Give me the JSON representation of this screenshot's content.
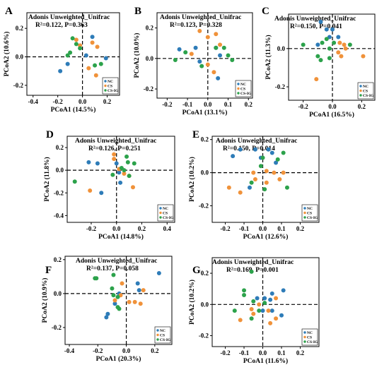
{
  "colors": {
    "NC": "#2e7cb8",
    "CS": "#f0923a",
    "CS-IG": "#2ca24b"
  },
  "chart_data": [
    {
      "type": "scatter",
      "panel": "A",
      "title": "Adonis Unweighted_Unifrac",
      "stat": "R²=0.122, P=0.363",
      "xlabel": "PCoA1 (14.5%)",
      "ylabel": "PCoA2 (10.6%)",
      "xlim": [
        -0.45,
        0.3
      ],
      "ylim": [
        -0.27,
        0.31
      ],
      "xticks": [
        -0.4,
        -0.2,
        0.0,
        0.2
      ],
      "yticks": [
        -0.2,
        0.0,
        0.2
      ],
      "legend": [
        "NC",
        "CS",
        "CS-IG"
      ],
      "series": [
        {
          "name": "NC",
          "color": "#2e7cb8",
          "points": [
            [
              -0.18,
              -0.1
            ],
            [
              0.08,
              0.14
            ],
            [
              0.03,
              0.01
            ],
            [
              -0.12,
              -0.05
            ],
            [
              0.19,
              -0.01
            ]
          ]
        },
        {
          "name": "CS",
          "color": "#f0923a",
          "points": [
            [
              -0.02,
              0.08
            ],
            [
              0.08,
              0.1
            ],
            [
              0.12,
              0.07
            ],
            [
              -0.05,
              0.12
            ],
            [
              0.05,
              -0.08
            ],
            [
              0.11,
              -0.13
            ]
          ]
        },
        {
          "name": "CS-IG",
          "color": "#2ca24b",
          "points": [
            [
              -0.05,
              0.09
            ],
            [
              -0.08,
              0.13
            ],
            [
              -0.02,
              0.06
            ],
            [
              -0.1,
              0.03
            ],
            [
              0.1,
              -0.06
            ],
            [
              0.15,
              -0.05
            ],
            [
              -0.12,
              0.01
            ]
          ]
        }
      ]
    },
    {
      "type": "scatter",
      "panel": "B",
      "title": "Adonis Unweighted_Unifrac",
      "stat": "R²=0.123, P=0.328",
      "xlabel": "PCoA1 (13.1%)",
      "ylabel": "PCoA2 (10.0%)",
      "xlim": [
        -0.25,
        0.22
      ],
      "ylim": [
        -0.26,
        0.3
      ],
      "xticks": [
        -0.2,
        -0.1,
        0.0,
        0.1,
        0.2
      ],
      "yticks": [
        -0.2,
        0.0,
        0.2
      ],
      "legend": [
        "NC",
        "CS",
        "CS-IG"
      ],
      "series": [
        {
          "name": "NC",
          "color": "#2e7cb8",
          "points": [
            [
              -0.14,
              0.06
            ],
            [
              -0.06,
              0.07
            ],
            [
              0.04,
              0.07
            ],
            [
              0.06,
              0.02
            ],
            [
              -0.04,
              -0.02
            ],
            [
              0.05,
              -0.13
            ]
          ]
        },
        {
          "name": "CS",
          "color": "#f0923a",
          "points": [
            [
              -0.04,
              0.18
            ],
            [
              0.04,
              0.16
            ],
            [
              0.0,
              0.14
            ],
            [
              0.06,
              0.09
            ],
            [
              -0.08,
              0.03
            ],
            [
              0.0,
              -0.04
            ],
            [
              0.03,
              -0.09
            ]
          ]
        },
        {
          "name": "CS-IG",
          "color": "#2ca24b",
          "points": [
            [
              -0.16,
              -0.01
            ],
            [
              -0.11,
              0.04
            ],
            [
              0.04,
              0.07
            ],
            [
              0.08,
              0.07
            ],
            [
              0.1,
              0.02
            ],
            [
              0.12,
              -0.01
            ],
            [
              -0.03,
              -0.05
            ]
          ]
        }
      ]
    },
    {
      "type": "scatter",
      "panel": "C",
      "title": "Adonis Unweighted_Unifrac",
      "stat": "R²=0.150, P=0.041",
      "xlabel": "PCoA1 (16.5%)",
      "ylabel": "PCoA2 (11.3%)",
      "xlim": [
        -0.3,
        0.29
      ],
      "ylim": [
        -0.27,
        0.18
      ],
      "xticks": [
        -0.2,
        0.0,
        0.2
      ],
      "yticks": [
        -0.2,
        0.0
      ],
      "legend": [
        "NC",
        "CS",
        "CS-IG"
      ],
      "series": [
        {
          "name": "NC",
          "color": "#2e7cb8",
          "points": [
            [
              -0.08,
              0.14
            ],
            [
              -0.04,
              0.1
            ],
            [
              0.0,
              0.1
            ],
            [
              -0.02,
              0.06
            ],
            [
              0.04,
              0.06
            ],
            [
              -0.1,
              0.02
            ]
          ]
        },
        {
          "name": "CS",
          "color": "#f0923a",
          "points": [
            [
              0.05,
              0.03
            ],
            [
              0.08,
              0.02
            ],
            [
              0.09,
              0.0
            ],
            [
              0.04,
              -0.02
            ],
            [
              0.06,
              -0.04
            ],
            [
              0.21,
              -0.04
            ],
            [
              -0.11,
              -0.16
            ]
          ]
        },
        {
          "name": "CS-IG",
          "color": "#2ca24b",
          "points": [
            [
              -0.04,
              0.05
            ],
            [
              -0.07,
              0.03
            ],
            [
              -0.02,
              0.0
            ],
            [
              -0.1,
              -0.04
            ],
            [
              -0.02,
              -0.05
            ],
            [
              -0.08,
              -0.06
            ],
            [
              0.01,
              0.03
            ],
            [
              0.12,
              0.02
            ],
            [
              -0.2,
              0.02
            ]
          ]
        }
      ]
    },
    {
      "type": "scatter",
      "panel": "D",
      "title": "Adonis Unweighted_Unifrac",
      "stat": "R²=0.126, P=0.251",
      "xlabel": "PCoA1 (14.8%)",
      "ylabel": "PCoA2 (11.8%)",
      "xlim": [
        -0.39,
        0.46
      ],
      "ylim": [
        -0.46,
        0.3
      ],
      "xticks": [
        -0.2,
        0.0,
        0.2,
        0.4
      ],
      "yticks": [
        -0.4,
        -0.2,
        0.0,
        0.2
      ],
      "legend": [
        "NC",
        "CS",
        "CS-IG"
      ],
      "series": [
        {
          "name": "NC",
          "color": "#2e7cb8",
          "points": [
            [
              -0.22,
              0.07
            ],
            [
              -0.15,
              0.06
            ],
            [
              0.0,
              0.06
            ],
            [
              0.02,
              -0.02
            ],
            [
              -0.12,
              -0.2
            ],
            [
              0.03,
              -0.11
            ]
          ]
        },
        {
          "name": "CS",
          "color": "#f0923a",
          "points": [
            [
              -0.02,
              0.14
            ],
            [
              -0.02,
              0.1
            ],
            [
              0.02,
              0.01
            ],
            [
              0.06,
              -0.03
            ],
            [
              0.1,
              -0.05
            ],
            [
              0.13,
              -0.15
            ],
            [
              -0.21,
              -0.18
            ]
          ]
        },
        {
          "name": "CS-IG",
          "color": "#2ca24b",
          "points": [
            [
              0.08,
              0.12
            ],
            [
              0.09,
              0.07
            ],
            [
              0.14,
              0.06
            ],
            [
              0.04,
              0.02
            ],
            [
              0.06,
              0.0
            ],
            [
              0.1,
              -0.05
            ],
            [
              -0.03,
              -0.04
            ],
            [
              -0.33,
              -0.1
            ]
          ]
        }
      ]
    },
    {
      "type": "scatter",
      "panel": "E",
      "title": "Adonis Unweighted_Unifrac",
      "stat": "R²=0.150, P=0.014",
      "xlabel": "PCoA1 (12.6%)",
      "ylabel": "PCoA2 (10.2%)",
      "xlim": [
        -0.27,
        0.3
      ],
      "ylim": [
        -0.3,
        0.22
      ],
      "xticks": [
        -0.2,
        -0.1,
        0.0,
        0.1,
        0.2
      ],
      "yticks": [
        -0.2,
        0.0,
        0.2
      ],
      "legend": [
        "NC",
        "CS",
        "CS-IG"
      ],
      "series": [
        {
          "name": "NC",
          "color": "#2e7cb8",
          "points": [
            [
              -0.12,
              0.14
            ],
            [
              -0.04,
              0.14
            ],
            [
              0.03,
              0.14
            ],
            [
              0.05,
              0.12
            ],
            [
              -0.16,
              0.1
            ],
            [
              -0.01,
              0.09
            ],
            [
              0.07,
              0.06
            ],
            [
              -0.07,
              -0.09
            ]
          ]
        },
        {
          "name": "CS",
          "color": "#f0923a",
          "points": [
            [
              0.02,
              0.01
            ],
            [
              -0.05,
              0.0
            ],
            [
              0.06,
              0.0
            ],
            [
              0.11,
              0.0
            ],
            [
              -0.04,
              -0.04
            ],
            [
              0.02,
              -0.06
            ],
            [
              0.09,
              -0.04
            ],
            [
              -0.12,
              -0.12
            ],
            [
              -0.18,
              -0.09
            ]
          ]
        },
        {
          "name": "CS-IG",
          "color": "#2ca24b",
          "points": [
            [
              0.11,
              0.12
            ],
            [
              0.0,
              0.09
            ],
            [
              0.08,
              0.08
            ],
            [
              -0.01,
              0.04
            ],
            [
              -0.06,
              -0.06
            ],
            [
              0.01,
              -0.1
            ],
            [
              0.13,
              -0.09
            ]
          ]
        }
      ]
    },
    {
      "type": "scatter",
      "panel": "F",
      "title": "Adonis Unweighted_Unifrac",
      "stat": "R²=0.137, P=0.058",
      "xlabel": "PCoA1 (20.3%)",
      "ylabel": "PCoA2 (10.9%)",
      "xlim": [
        -0.43,
        0.32
      ],
      "ylim": [
        -0.3,
        0.22
      ],
      "xticks": [
        -0.4,
        -0.2,
        0.0,
        0.2
      ],
      "yticks": [
        -0.2,
        0.0,
        0.2
      ],
      "legend": [
        "NC",
        "CS",
        "CS-IG"
      ],
      "series": [
        {
          "name": "NC",
          "color": "#2e7cb8",
          "points": [
            [
              0.23,
              0.12
            ],
            [
              0.08,
              0.06
            ],
            [
              0.09,
              0.02
            ],
            [
              -0.05,
              0.0
            ],
            [
              -0.13,
              -0.12
            ],
            [
              -0.14,
              -0.14
            ],
            [
              -0.08,
              -0.06
            ]
          ]
        },
        {
          "name": "CS",
          "color": "#f0923a",
          "points": [
            [
              -0.03,
              0.06
            ],
            [
              -0.04,
              -0.01
            ],
            [
              0.02,
              -0.05
            ],
            [
              0.06,
              -0.05
            ],
            [
              0.1,
              -0.06
            ],
            [
              0.12,
              0.02
            ],
            [
              -0.08,
              -0.04
            ]
          ]
        },
        {
          "name": "CS-IG",
          "color": "#2ca24b",
          "points": [
            [
              -0.22,
              0.09
            ],
            [
              -0.21,
              0.09
            ],
            [
              -0.09,
              0.11
            ],
            [
              -0.1,
              0.03
            ],
            [
              -0.09,
              -0.01
            ],
            [
              -0.06,
              -0.02
            ],
            [
              -0.06,
              -0.08
            ],
            [
              -0.05,
              -0.09
            ]
          ]
        }
      ]
    },
    {
      "type": "scatter",
      "panel": "G",
      "title": "Adonis Unweighted_Unifrac",
      "stat": "R²=0.169, P=0.001",
      "xlabel": "PCoA1 (11.6%)",
      "ylabel": "PCoA2 (10.2%)",
      "xlim": [
        -0.27,
        0.3
      ],
      "ylim": [
        -0.27,
        0.3
      ],
      "xticks": [
        -0.2,
        -0.1,
        0.0,
        0.1,
        0.2
      ],
      "yticks": [
        -0.2,
        0.0,
        0.2
      ],
      "legend": [
        "NC",
        "CS",
        "CS-IG"
      ],
      "series": [
        {
          "name": "NC",
          "color": "#2e7cb8",
          "points": [
            [
              0.11,
              0.09
            ],
            [
              0.05,
              0.07
            ],
            [
              0.01,
              0.04
            ],
            [
              0.04,
              0.03
            ],
            [
              -0.03,
              0.04
            ],
            [
              0.0,
              -0.04
            ],
            [
              0.05,
              -0.04
            ],
            [
              0.1,
              -0.07
            ]
          ]
        },
        {
          "name": "CS",
          "color": "#f0923a",
          "points": [
            [
              0.07,
              0.04
            ],
            [
              -0.02,
              0.0
            ],
            [
              -0.06,
              -0.03
            ],
            [
              0.03,
              -0.04
            ],
            [
              -0.05,
              -0.06
            ],
            [
              0.07,
              -0.09
            ],
            [
              -0.12,
              -0.1
            ],
            [
              0.04,
              -0.12
            ]
          ]
        },
        {
          "name": "CS-IG",
          "color": "#2ca24b",
          "points": [
            [
              -0.06,
              0.21
            ],
            [
              -0.1,
              0.09
            ],
            [
              -0.1,
              0.06
            ],
            [
              -0.05,
              0.02
            ],
            [
              0.01,
              0.01
            ],
            [
              -0.02,
              -0.04
            ],
            [
              -0.15,
              -0.04
            ],
            [
              -0.06,
              -0.09
            ]
          ]
        }
      ]
    }
  ]
}
